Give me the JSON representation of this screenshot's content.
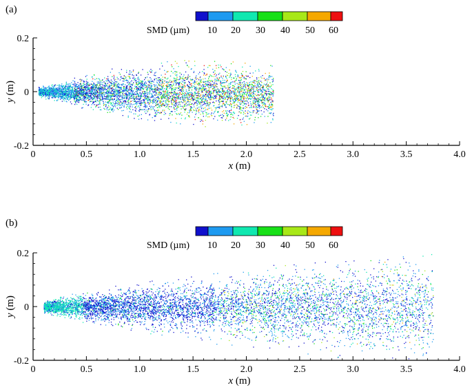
{
  "chart_data": [
    {
      "type": "scatter",
      "panel_label": "(a)",
      "xlabel": "x (m)",
      "ylabel": "y (m)",
      "xlim": [
        0,
        4.0
      ],
      "ylim": [
        -0.2,
        0.2
      ],
      "x_ticks": [
        "0",
        "0.5",
        "1.0",
        "1.5",
        "2.0",
        "2.5",
        "3.0",
        "3.5",
        "4.0"
      ],
      "y_ticks": [
        "-0.2",
        "0",
        "0.2"
      ],
      "colorbar": {
        "title": "SMD (µm)",
        "range": [
          5,
          65
        ],
        "colors": [
          "#1010cc",
          "#1e9af0",
          "#10e8b0",
          "#18e018",
          "#a8e818",
          "#f5a800",
          "#ee1010"
        ],
        "tick_labels": [
          "10",
          "20",
          "30",
          "40",
          "50",
          "60"
        ]
      },
      "spray": {
        "x_start": 0.05,
        "x_end": 2.25,
        "max_half_width": 0.07,
        "note_style": "dense"
      }
    },
    {
      "type": "scatter",
      "panel_label": "(b)",
      "xlabel": "x (m)",
      "ylabel": "y (m)",
      "xlim": [
        0,
        4.0
      ],
      "ylim": [
        -0.2,
        0.2
      ],
      "x_ticks": [
        "0",
        "0.5",
        "1.0",
        "1.5",
        "2.0",
        "2.5",
        "3.0",
        "3.5",
        "4.0"
      ],
      "y_ticks": [
        "-0.2",
        "0",
        "0.2"
      ],
      "colorbar": {
        "title": "SMD (µm)",
        "range": [
          5,
          65
        ],
        "colors": [
          "#1010cc",
          "#1e9af0",
          "#10e8b0",
          "#18e018",
          "#a8e818",
          "#f5a800",
          "#ee1010"
        ],
        "tick_labels": [
          "10",
          "20",
          "30",
          "40",
          "50",
          "60"
        ]
      },
      "spray": {
        "x_start": 0.1,
        "x_end": 3.75,
        "max_half_width": 0.13,
        "note_style": "wide"
      }
    }
  ]
}
